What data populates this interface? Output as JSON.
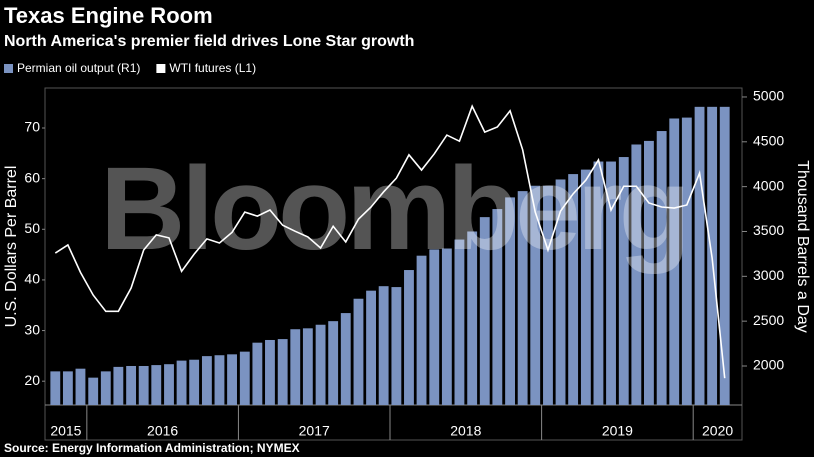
{
  "chart_data": {
    "type": "bar-line",
    "title": "Texas Engine Room",
    "subtitle": "North America's premier field drives Lone Star growth",
    "watermark": "Bloomberg",
    "source": "Source: Energy Information Administration; NYMEX",
    "ylabel": "U.S. Dollars Per Barrel",
    "y2label": "Thousand Barrels a Day",
    "x": [
      2015.792,
      2015.875,
      2015.958,
      2016.042,
      2016.125,
      2016.208,
      2016.292,
      2016.375,
      2016.458,
      2016.542,
      2016.625,
      2016.708,
      2016.792,
      2016.875,
      2016.958,
      2017.042,
      2017.125,
      2017.208,
      2017.292,
      2017.375,
      2017.458,
      2017.542,
      2017.625,
      2017.708,
      2017.792,
      2017.875,
      2017.958,
      2018.042,
      2018.125,
      2018.208,
      2018.292,
      2018.375,
      2018.458,
      2018.542,
      2018.625,
      2018.708,
      2018.792,
      2018.875,
      2018.958,
      2019.042,
      2019.125,
      2019.208,
      2019.292,
      2019.375,
      2019.458,
      2019.542,
      2019.625,
      2019.708,
      2019.792,
      2019.875,
      2019.958,
      2020.042,
      2020.125,
      2020.208
    ],
    "xlim": [
      2015.724,
      2020.322
    ],
    "xticks": [
      2016,
      2017,
      2018,
      2019,
      2020
    ],
    "year_labels": [
      2015,
      2016,
      2017,
      2018,
      2019,
      2020
    ],
    "ylim": [
      15.3,
      77.9
    ],
    "yticks": [
      20,
      30,
      40,
      50,
      60,
      70
    ],
    "y2lim": [
      1565,
      5100
    ],
    "y2ticks": [
      2000,
      2500,
      3000,
      3500,
      4000,
      4500,
      5000
    ],
    "series": [
      {
        "name": "Permian oil output (R1)",
        "color": "#7b93c1",
        "kind": "bar",
        "axis": "y2",
        "values": [
          1940,
          1940,
          1970,
          1870,
          1940,
          1990,
          2000,
          2000,
          2010,
          2020,
          2060,
          2070,
          2110,
          2120,
          2130,
          2160,
          2260,
          2290,
          2300,
          2410,
          2420,
          2460,
          2500,
          2590,
          2750,
          2840,
          2890,
          2880,
          3070,
          3230,
          3300,
          3310,
          3410,
          3500,
          3660,
          3750,
          3880,
          3950,
          4010,
          4010,
          4080,
          4140,
          4190,
          4280,
          4280,
          4330,
          4470,
          4510,
          4620,
          4760,
          4770,
          4890,
          4890,
          4890
        ]
      },
      {
        "name": "WTI futures (L1)",
        "color": "#ffffff",
        "kind": "line",
        "values": [
          45.3,
          46.9,
          41.5,
          37.0,
          33.8,
          33.8,
          38.4,
          45.9,
          48.9,
          48.3,
          41.7,
          45.1,
          48.1,
          47.3,
          49.4,
          53.4,
          52.6,
          53.8,
          50.8,
          49.6,
          48.5,
          46.3,
          50.6,
          47.5,
          52.0,
          54.4,
          57.4,
          60.1,
          64.7,
          61.7,
          64.9,
          68.6,
          67.4,
          74.3,
          69.2,
          70.2,
          73.4,
          65.7,
          53.4,
          45.9,
          53.6,
          57.0,
          59.7,
          63.7,
          53.8,
          58.5,
          58.5,
          55.2,
          54.4,
          54.2,
          54.8,
          61.1,
          44.3,
          20.6
        ]
      }
    ]
  }
}
